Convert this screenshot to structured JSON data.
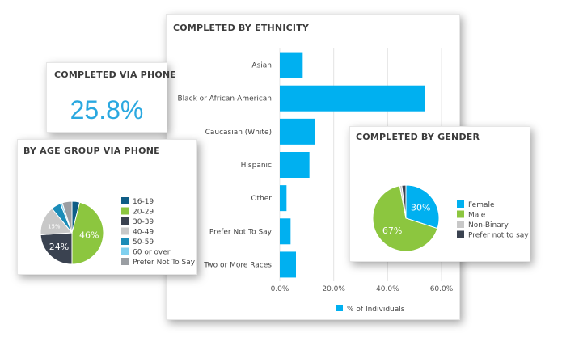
{
  "ethnicity": {
    "title": "COMPLETED BY ETHNICITY",
    "legend_label": "% of Individuals",
    "chart_data": {
      "type": "bar",
      "orientation": "horizontal",
      "categories": [
        "Asian",
        "Black or African-American",
        "Caucasian (White)",
        "Hispanic",
        "Other",
        "Prefer Not To Say",
        "Two or More Races"
      ],
      "values": [
        8.5,
        54.0,
        13.0,
        11.0,
        2.5,
        4.0,
        6.0
      ],
      "xlim": [
        0,
        60
      ],
      "xticks": [
        "0.0%",
        "20.0%",
        "40.0%",
        "60.0%"
      ],
      "series": [
        {
          "name": "% of Individuals",
          "values": [
            8.5,
            54.0,
            13.0,
            11.0,
            2.5,
            4.0,
            6.0
          ]
        }
      ],
      "color": "#00b0f0",
      "grid": true,
      "legend_position": "bottom"
    }
  },
  "phone": {
    "title": "COMPLETED VIA PHONE",
    "value": "25.8%"
  },
  "age": {
    "title": "BY AGE GROUP VIA PHONE",
    "chart_data": {
      "type": "pie",
      "labels": [
        "16-19",
        "20-29",
        "30-39",
        "40-49",
        "50-59",
        "60 or over",
        "Prefer Not To Say"
      ],
      "values": [
        4,
        46,
        24,
        15,
        5,
        1,
        5
      ],
      "colors": [
        "#0f5d86",
        "#8cc63f",
        "#3a4250",
        "#c8c8c8",
        "#1a8cb8",
        "#7fd0ef",
        "#9a9ea3"
      ],
      "data_labels": {
        "20-29": "46%",
        "30-39": "24%",
        "40-49": "15%"
      },
      "legend_position": "right"
    }
  },
  "gender": {
    "title": "COMPLETED BY GENDER",
    "chart_data": {
      "type": "pie",
      "labels": [
        "Female",
        "Male",
        "Non-Binary",
        "Prefer not to say"
      ],
      "values": [
        30,
        67,
        1,
        2
      ],
      "colors": [
        "#00b0f0",
        "#8cc63f",
        "#c8c8c8",
        "#3a4250"
      ],
      "data_labels": {
        "Female": "30%",
        "Male": "67%"
      },
      "legend_position": "right"
    }
  }
}
